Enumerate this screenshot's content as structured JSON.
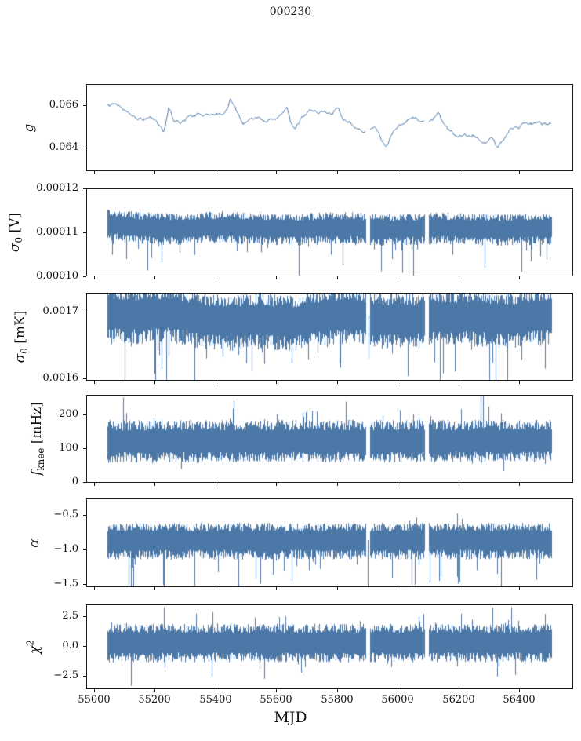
{
  "figure": {
    "background": "#ffffff",
    "line_color": "#4c78a8",
    "spine_color": "#1c1c1c",
    "text_color": "#111111"
  },
  "chart_data": {
    "type": "line",
    "title": "000230",
    "xlabel": "MJD",
    "legend": "none",
    "grid": false,
    "xlim": [
      54975,
      56578
    ],
    "x_data_range": [
      55042,
      56508
    ],
    "gaps": [
      [
        55896,
        55909
      ],
      [
        56091,
        56103
      ]
    ],
    "xticks": [
      {
        "v": 55000,
        "label": "55000"
      },
      {
        "v": 55200,
        "label": "55200"
      },
      {
        "v": 55400,
        "label": "55400"
      },
      {
        "v": 55600,
        "label": "55600"
      },
      {
        "v": 55800,
        "label": "55800"
      },
      {
        "v": 56000,
        "label": "56000"
      },
      {
        "v": 56200,
        "label": "56200"
      },
      {
        "v": 56400,
        "label": "56400"
      }
    ],
    "panels": [
      {
        "id": "g",
        "ylabel": {
          "main": "g",
          "italic": true,
          "sub": "",
          "sup": "",
          "suffix": ""
        },
        "ylim": [
          0.0629,
          0.067
        ],
        "yticks": [
          {
            "v": 0.066,
            "label": "0.066"
          },
          {
            "v": 0.064,
            "label": "0.064"
          }
        ],
        "style": "line",
        "noise_sd": 6e-05,
        "trend": {
          "x": [
            55045,
            55070,
            55090,
            55110,
            55130,
            55155,
            55180,
            55205,
            55228,
            55245,
            55262,
            55285,
            55310,
            55340,
            55370,
            55400,
            55430,
            55448,
            55465,
            55490,
            55512,
            55535,
            55560,
            55585,
            55610,
            55635,
            55648,
            55662,
            55685,
            55710,
            55735,
            55760,
            55785,
            55805,
            55820,
            55845,
            55865,
            55885,
            55905,
            55925,
            55945,
            55962,
            55980,
            56000,
            56025,
            56050,
            56075,
            56095,
            56115,
            56135,
            56150,
            56170,
            56190,
            56210,
            56230,
            56250,
            56270,
            56290,
            56310,
            56330,
            56350,
            56370,
            56390,
            56410,
            56430,
            56450,
            56470,
            56490,
            56508
          ],
          "y": [
            0.066,
            0.0661,
            0.0659,
            0.0657,
            0.0655,
            0.0654,
            0.0654,
            0.0652,
            0.0647,
            0.0659,
            0.0653,
            0.0652,
            0.0655,
            0.0656,
            0.0656,
            0.0655,
            0.0657,
            0.0663,
            0.0658,
            0.0652,
            0.0653,
            0.0654,
            0.0652,
            0.0653,
            0.0655,
            0.0659,
            0.0651,
            0.065,
            0.0655,
            0.0657,
            0.0656,
            0.0657,
            0.0655,
            0.0659,
            0.0653,
            0.0652,
            0.0648,
            0.0647,
            0.0648,
            0.065,
            0.0644,
            0.064,
            0.0645,
            0.0649,
            0.0653,
            0.0655,
            0.0654,
            0.0651,
            0.0653,
            0.0656,
            0.0652,
            0.0648,
            0.0646,
            0.0645,
            0.0645,
            0.0646,
            0.0645,
            0.0642,
            0.0644,
            0.064,
            0.0643,
            0.0648,
            0.065,
            0.0651,
            0.0652,
            0.0651,
            0.0652,
            0.0651,
            0.0652
          ]
        },
        "spikes": []
      },
      {
        "id": "sigma0_V",
        "ylabel": {
          "main": "σ",
          "italic": true,
          "sub": "0",
          "sup": "",
          "suffix": " [V]"
        },
        "ylim": [
          0.0001,
          0.00012
        ],
        "yticks": [
          {
            "v": 0.00012,
            "label": "0.00012"
          },
          {
            "v": 0.00011,
            "label": "0.00011"
          },
          {
            "v": 0.0001,
            "label": "0.00010"
          }
        ],
        "style": "band",
        "band": {
          "center": {
            "x": [
              55045,
              55150,
              55250,
              55350,
              55450,
              55550,
              55650,
              55750,
              55850,
              55950,
              56050,
              56150,
              56250,
              56350,
              56450,
              56510
            ],
            "y": [
              0.000112,
              0.0001113,
              0.000111,
              0.0001113,
              0.0001114,
              0.000111,
              0.0001109,
              0.0001112,
              0.0001113,
              0.0001108,
              0.000111,
              0.0001112,
              0.000111,
              0.0001108,
              0.000111,
              0.0001111
            ]
          },
          "hi": 3.1e-06,
          "lo": 3.6e-06,
          "p_down": 0.1,
          "tail_down": 2.5e-06,
          "p_up": 0.02,
          "tail_up": 8e-07
        },
        "spikes": [
          {
            "t": 55058,
            "v": 0.0001048
          },
          {
            "t": 55420,
            "v": 0.0001149
          },
          {
            "t": 55590,
            "v": 0.0001076
          },
          {
            "t": 55860,
            "v": 0.000107
          },
          {
            "t": 56120,
            "v": 0.0001072
          }
        ]
      },
      {
        "id": "sigma0_mK",
        "ylabel": {
          "main": "σ",
          "italic": true,
          "sub": "0",
          "sup": "",
          "suffix": " [mK]"
        },
        "ylim": [
          0.001597,
          0.001728
        ],
        "yticks": [
          {
            "v": 0.0017,
            "label": "0.0017"
          },
          {
            "v": 0.0016,
            "label": "0.0016"
          }
        ],
        "style": "band",
        "band": {
          "center": {
            "x": [
              55045,
              55150,
              55250,
              55350,
              55450,
              55550,
              55650,
              55750,
              55850,
              55950,
              56050,
              56150,
              56250,
              56350,
              56450,
              56510
            ],
            "y": [
              0.0017,
              0.001697,
              0.0017,
              0.00169,
              0.001687,
              0.00169,
              0.001686,
              0.001694,
              0.001699,
              0.00169,
              0.00169,
              0.001695,
              0.001694,
              0.00169,
              0.001695,
              0.001698
            ]
          },
          "hi": 3.6e-05,
          "lo": 4.2e-05,
          "p_down": 0.1,
          "tail_down": 3e-05,
          "p_up": 0.02,
          "tail_up": 8e-06
        },
        "spikes": [
          {
            "t": 55100,
            "v": 0.001594
          },
          {
            "t": 55560,
            "v": 0.001625
          },
          {
            "t": 55905,
            "v": 0.00163
          },
          {
            "t": 56190,
            "v": 0.00161
          },
          {
            "t": 56410,
            "v": 0.001628
          }
        ]
      },
      {
        "id": "fknee",
        "ylabel": {
          "main": "f",
          "italic": true,
          "sub": "knee",
          "sup": "",
          "suffix": " [mHz]"
        },
        "ylim": [
          -3,
          258
        ],
        "yticks": [
          {
            "v": 200,
            "label": "200"
          },
          {
            "v": 100,
            "label": "100"
          },
          {
            "v": 0,
            "label": "0"
          }
        ],
        "style": "band",
        "band": {
          "center": {
            "x": [
              55045,
              56510
            ],
            "y": [
              120,
              122
            ]
          },
          "hi": 58,
          "lo": 60,
          "p_down": 0.03,
          "tail_down": 10,
          "p_up": 0.06,
          "tail_up": 25
        },
        "spikes": [
          {
            "t": 55093,
            "v": 252
          },
          {
            "t": 55700,
            "v": 215
          },
          {
            "t": 56300,
            "v": 225
          }
        ]
      },
      {
        "id": "alpha",
        "ylabel": {
          "main": "α",
          "italic": true,
          "sub": "",
          "sup": "",
          "suffix": ""
        },
        "ylim": [
          -1.54,
          -0.26
        ],
        "yticks": [
          {
            "v": -0.5,
            "label": "−0.5"
          },
          {
            "v": -1.0,
            "label": "−1.0"
          },
          {
            "v": -1.5,
            "label": "−1.5"
          }
        ],
        "style": "band",
        "band": {
          "center": {
            "x": [
              55045,
              56510
            ],
            "y": [
              -0.86,
              -0.86
            ]
          },
          "hi": 0.23,
          "lo": 0.26,
          "p_down": 0.08,
          "tail_down": 0.22,
          "p_up": 0.02,
          "tail_up": 0.06
        },
        "spikes": [
          {
            "t": 55112,
            "v": -1.56
          },
          {
            "t": 55120,
            "v": -1.6
          },
          {
            "t": 55128,
            "v": -1.55
          },
          {
            "t": 55225,
            "v": -1.52
          },
          {
            "t": 55475,
            "v": -1.55
          },
          {
            "t": 55548,
            "v": -1.5
          },
          {
            "t": 55650,
            "v": -1.46
          },
          {
            "t": 55902,
            "v": -1.55
          },
          {
            "t": 56058,
            "v": -1.52
          },
          {
            "t": 56200,
            "v": -1.5
          },
          {
            "t": 56342,
            "v": -1.55
          },
          {
            "t": 56460,
            "v": -1.44
          }
        ]
      },
      {
        "id": "chi2",
        "ylabel": {
          "main": "χ",
          "italic": true,
          "sub": "",
          "sup": "2",
          "suffix": ""
        },
        "ylim": [
          -3.62,
          3.48
        ],
        "yticks": [
          {
            "v": 2.5,
            "label": "2.5"
          },
          {
            "v": 0.0,
            "label": "0.0"
          },
          {
            "v": -2.5,
            "label": "−2.5"
          }
        ],
        "style": "band",
        "band": {
          "center": {
            "x": [
              55045,
              56510
            ],
            "y": [
              0.3,
              0.3
            ]
          },
          "hi": 1.45,
          "lo": 1.55,
          "p_down": 0.05,
          "tail_down": 0.5,
          "p_up": 0.05,
          "tail_up": 0.5
        },
        "spikes": [
          {
            "t": 55120,
            "v": -3.4
          },
          {
            "t": 55228,
            "v": 3.3
          },
          {
            "t": 55390,
            "v": 2.9
          },
          {
            "t": 55560,
            "v": -2.8
          },
          {
            "t": 56210,
            "v": 2.75
          },
          {
            "t": 56330,
            "v": -2.6
          }
        ]
      }
    ]
  }
}
